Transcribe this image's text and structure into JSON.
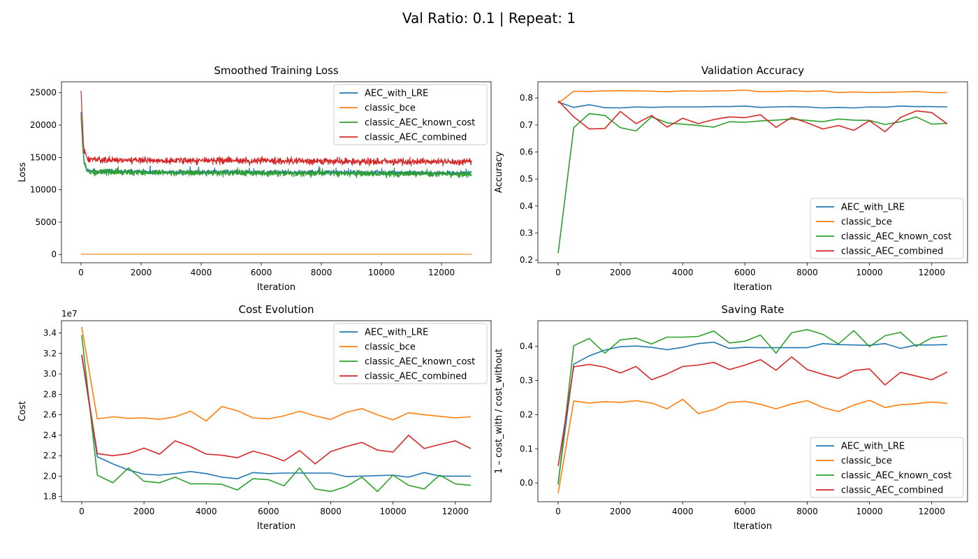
{
  "suptitle": "Val Ratio: 0.1 | Repeat: 1",
  "colors": {
    "AEC_with_LRE": "#1f77b4",
    "classic_bce": "#ff7f0e",
    "classic_AEC_known_cost": "#2ca02c",
    "classic_AEC_combined": "#d62728"
  },
  "chart_data": [
    {
      "type": "line",
      "title": "Smoothed Training Loss",
      "xlabel": "Iteration",
      "ylabel": "Loss",
      "xlim": [
        -650,
        13650
      ],
      "ylim": [
        -1270,
        26700
      ],
      "xticks": [
        0,
        2000,
        4000,
        6000,
        8000,
        10000,
        12000
      ],
      "yticks": [
        0,
        5000,
        10000,
        15000,
        20000,
        25000
      ],
      "legend_loc": "upper right",
      "noisy": true,
      "series": [
        {
          "name": "AEC_with_LRE",
          "center": [
            [
              0,
              22000
            ],
            [
              50,
              18000
            ],
            [
              100,
              14500
            ],
            [
              200,
              13000
            ],
            [
              500,
              12800
            ],
            [
              13000,
              12600
            ]
          ],
          "amp": 500
        },
        {
          "name": "classic_bce",
          "center": [
            [
              0,
              50
            ],
            [
              13000,
              50
            ]
          ],
          "amp": 0
        },
        {
          "name": "classic_AEC_known_cost",
          "center": [
            [
              0,
              21500
            ],
            [
              50,
              17000
            ],
            [
              100,
              14200
            ],
            [
              200,
              12900
            ],
            [
              500,
              12700
            ],
            [
              13000,
              12400
            ]
          ],
          "amp": 700
        },
        {
          "name": "classic_AEC_combined",
          "center": [
            [
              0,
              25300
            ],
            [
              50,
              20000
            ],
            [
              100,
              16000
            ],
            [
              200,
              14800
            ],
            [
              500,
              14600
            ],
            [
              13000,
              14300
            ]
          ],
          "amp": 750
        }
      ]
    },
    {
      "type": "line",
      "title": "Validation Accuracy",
      "xlabel": "Iteration",
      "ylabel": "Accuracy",
      "xlim": [
        -650,
        13150
      ],
      "ylim": [
        0.19,
        0.86
      ],
      "xticks": [
        0,
        2000,
        4000,
        6000,
        8000,
        10000,
        12000
      ],
      "yticks": [
        0.2,
        0.3,
        0.4,
        0.5,
        0.6,
        0.7,
        0.8
      ],
      "legend_loc": "lower right",
      "x": [
        0,
        500,
        1000,
        1500,
        2000,
        2500,
        3000,
        3500,
        4000,
        4500,
        5000,
        5500,
        6000,
        6500,
        7000,
        7500,
        8000,
        8500,
        9000,
        9500,
        10000,
        10500,
        11000,
        11500,
        12000,
        12500
      ],
      "series": [
        {
          "name": "AEC_with_LRE",
          "values": [
            0.785,
            0.765,
            0.775,
            0.764,
            0.763,
            0.767,
            0.765,
            0.767,
            0.767,
            0.767,
            0.768,
            0.768,
            0.77,
            0.765,
            0.767,
            0.768,
            0.767,
            0.763,
            0.765,
            0.763,
            0.767,
            0.766,
            0.77,
            0.768,
            0.768,
            0.767
          ]
        },
        {
          "name": "classic_bce",
          "values": [
            0.78,
            0.825,
            0.824,
            0.826,
            0.827,
            0.826,
            0.825,
            0.823,
            0.826,
            0.825,
            0.826,
            0.827,
            0.829,
            0.823,
            0.824,
            0.826,
            0.824,
            0.826,
            0.82,
            0.822,
            0.82,
            0.821,
            0.822,
            0.824,
            0.82,
            0.82
          ]
        },
        {
          "name": "classic_AEC_known_cost",
          "values": [
            0.225,
            0.69,
            0.742,
            0.735,
            0.69,
            0.678,
            0.73,
            0.708,
            0.703,
            0.698,
            0.692,
            0.712,
            0.71,
            0.715,
            0.718,
            0.722,
            0.717,
            0.712,
            0.722,
            0.718,
            0.717,
            0.702,
            0.712,
            0.73,
            0.703,
            0.706
          ]
        },
        {
          "name": "classic_AEC_combined",
          "values": [
            0.79,
            0.73,
            0.685,
            0.687,
            0.75,
            0.705,
            0.735,
            0.692,
            0.725,
            0.705,
            0.72,
            0.73,
            0.727,
            0.738,
            0.691,
            0.728,
            0.708,
            0.685,
            0.698,
            0.68,
            0.716,
            0.675,
            0.728,
            0.752,
            0.746,
            0.704
          ]
        }
      ]
    },
    {
      "type": "line",
      "title": "Cost Evolution",
      "xlabel": "Iteration",
      "ylabel": "Cost",
      "offset_text": "1e7",
      "xlim": [
        -650,
        13150
      ],
      "ylim": [
        1.75,
        3.52
      ],
      "xticks": [
        0,
        2000,
        4000,
        6000,
        8000,
        10000,
        12000
      ],
      "yticks": [
        1.8,
        2.0,
        2.2,
        2.4,
        2.6,
        2.8,
        3.0,
        3.2,
        3.4
      ],
      "legend_loc": "upper right",
      "x": [
        0,
        500,
        1000,
        1500,
        2000,
        2500,
        3000,
        3500,
        4000,
        4500,
        5000,
        5500,
        6000,
        6500,
        7000,
        7500,
        8000,
        8500,
        9000,
        9500,
        10000,
        10500,
        11000,
        11500,
        12000,
        12500
      ],
      "series": [
        {
          "name": "AEC_with_LRE",
          "values": [
            3.18,
            2.19,
            2.12,
            2.06,
            2.02,
            2.01,
            2.025,
            2.045,
            2.025,
            1.99,
            1.975,
            2.035,
            2.025,
            2.03,
            2.03,
            2.03,
            2.03,
            1.995,
            2.0,
            2.005,
            2.01,
            1.99,
            2.035,
            2.0,
            2.0,
            2.0
          ]
        },
        {
          "name": "classic_bce",
          "values": [
            3.46,
            2.56,
            2.58,
            2.565,
            2.57,
            2.555,
            2.58,
            2.635,
            2.54,
            2.68,
            2.64,
            2.57,
            2.56,
            2.59,
            2.635,
            2.59,
            2.555,
            2.625,
            2.66,
            2.6,
            2.55,
            2.62,
            2.6,
            2.585,
            2.57,
            2.58
          ]
        },
        {
          "name": "classic_AEC_known_cost",
          "values": [
            3.38,
            2.01,
            1.935,
            2.08,
            1.95,
            1.935,
            1.99,
            1.925,
            1.925,
            1.92,
            1.865,
            1.975,
            1.965,
            1.905,
            2.08,
            1.875,
            1.85,
            1.9,
            1.99,
            1.85,
            2.01,
            1.91,
            1.875,
            2.01,
            1.925,
            1.91
          ]
        },
        {
          "name": "classic_AEC_combined",
          "values": [
            3.19,
            2.22,
            2.2,
            2.22,
            2.275,
            2.215,
            2.345,
            2.29,
            2.215,
            2.205,
            2.18,
            2.245,
            2.205,
            2.15,
            2.25,
            2.12,
            2.24,
            2.29,
            2.33,
            2.255,
            2.235,
            2.4,
            2.27,
            2.31,
            2.345,
            2.27
          ]
        }
      ]
    },
    {
      "type": "line",
      "title": "Saving Rate",
      "xlabel": "Iteration",
      "ylabel": "1 – cost_with / cost_without",
      "xlim": [
        -650,
        13150
      ],
      "ylim": [
        -0.055,
        0.475
      ],
      "xticks": [
        0,
        2000,
        4000,
        6000,
        8000,
        10000,
        12000
      ],
      "yticks": [
        0.0,
        0.1,
        0.2,
        0.3,
        0.4
      ],
      "legend_loc": "lower right",
      "x": [
        0,
        500,
        1000,
        1500,
        2000,
        2500,
        3000,
        3500,
        4000,
        4500,
        5000,
        5500,
        6000,
        6500,
        7000,
        7500,
        8000,
        8500,
        9000,
        9500,
        10000,
        10500,
        11000,
        11500,
        12000,
        12500
      ],
      "series": [
        {
          "name": "AEC_with_LRE",
          "values": [
            0.0,
            0.348,
            0.372,
            0.389,
            0.399,
            0.401,
            0.397,
            0.39,
            0.397,
            0.408,
            0.412,
            0.394,
            0.397,
            0.396,
            0.396,
            0.396,
            0.396,
            0.408,
            0.405,
            0.404,
            0.403,
            0.408,
            0.394,
            0.404,
            0.404,
            0.405
          ]
        },
        {
          "name": "classic_bce",
          "values": [
            -0.03,
            0.24,
            0.234,
            0.238,
            0.236,
            0.241,
            0.234,
            0.217,
            0.245,
            0.203,
            0.215,
            0.236,
            0.239,
            0.23,
            0.217,
            0.231,
            0.241,
            0.221,
            0.209,
            0.228,
            0.242,
            0.221,
            0.229,
            0.232,
            0.237,
            0.233
          ]
        },
        {
          "name": "classic_AEC_known_cost",
          "values": [
            -0.005,
            0.402,
            0.423,
            0.38,
            0.419,
            0.424,
            0.407,
            0.427,
            0.427,
            0.429,
            0.445,
            0.41,
            0.415,
            0.433,
            0.38,
            0.44,
            0.449,
            0.435,
            0.407,
            0.446,
            0.399,
            0.431,
            0.441,
            0.4,
            0.425,
            0.431
          ]
        },
        {
          "name": "classic_AEC_combined",
          "values": [
            0.05,
            0.34,
            0.347,
            0.339,
            0.322,
            0.341,
            0.302,
            0.319,
            0.341,
            0.345,
            0.353,
            0.332,
            0.345,
            0.361,
            0.33,
            0.369,
            0.332,
            0.318,
            0.306,
            0.329,
            0.334,
            0.287,
            0.324,
            0.313,
            0.302,
            0.325
          ]
        }
      ]
    }
  ]
}
